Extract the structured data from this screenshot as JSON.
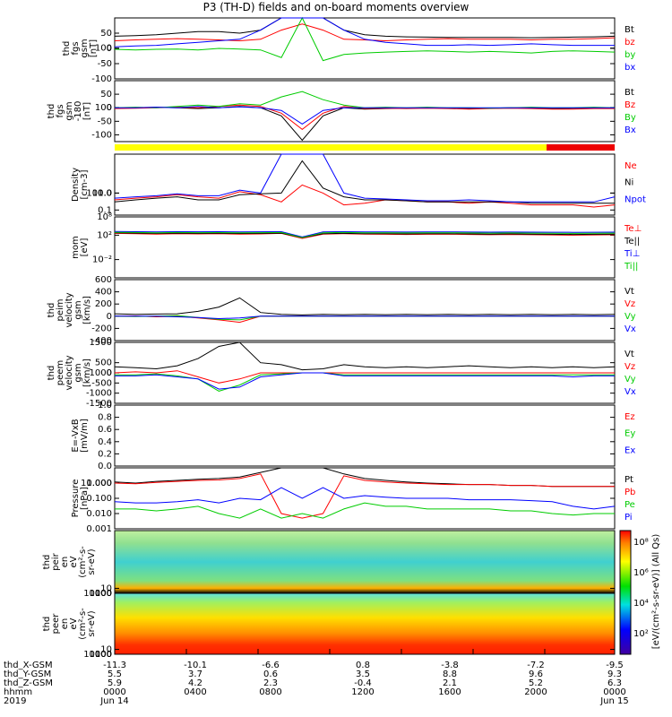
{
  "title": "P3 (TH-D) fields and on-board moments overview",
  "colors": {
    "black": "#000000",
    "red": "#ff0000",
    "green": "#00cc00",
    "blue": "#0000ff",
    "yellow": "#ffff00",
    "barRed": "#ee0000"
  },
  "chart_data": [
    {
      "type": "line",
      "id": "fgs",
      "ylabel": [
        "thd",
        "fgs",
        "gsm",
        "[nT]"
      ],
      "yticks": [
        "100",
        "50",
        "0",
        "-50",
        "-100"
      ],
      "ylim": [
        -100,
        100
      ],
      "scale": "linear",
      "series": [
        {
          "name": "Bt",
          "color": "#000000",
          "values": [
            40,
            42,
            45,
            50,
            55,
            55,
            50,
            60,
            100,
            100,
            100,
            60,
            45,
            40,
            38,
            37,
            36,
            36,
            36,
            36,
            35,
            36,
            37,
            38,
            40
          ]
        },
        {
          "name": "bz",
          "color": "#ff0000",
          "values": [
            25,
            28,
            30,
            32,
            30,
            28,
            25,
            30,
            60,
            80,
            60,
            30,
            28,
            25,
            28,
            30,
            32,
            30,
            30,
            30,
            28,
            30,
            30,
            32,
            35
          ]
        },
        {
          "name": "by",
          "color": "#00cc00",
          "values": [
            -3,
            -5,
            -3,
            -2,
            -5,
            0,
            -2,
            -5,
            -30,
            100,
            -40,
            -20,
            -15,
            -12,
            -10,
            -8,
            -10,
            -12,
            -10,
            -12,
            -15,
            -10,
            -8,
            -10,
            -12
          ]
        },
        {
          "name": "bx",
          "color": "#0000ff",
          "values": [
            5,
            8,
            10,
            15,
            20,
            25,
            30,
            60,
            100,
            100,
            100,
            60,
            30,
            20,
            15,
            10,
            10,
            12,
            10,
            12,
            15,
            12,
            10,
            10,
            10
          ]
        }
      ]
    },
    {
      "type": "line",
      "id": "fgs-180",
      "ylabel": [
        "thd",
        "fgs",
        "gsm",
        "-180",
        "[nT]"
      ],
      "yticks": [
        "100",
        "50",
        "0",
        "-50",
        "-100"
      ],
      "ylim": [
        -125,
        100
      ],
      "scale": "linear",
      "series": [
        {
          "name": "Bt",
          "color": "#000000",
          "values": [
            -2,
            0,
            2,
            0,
            -3,
            0,
            5,
            0,
            -30,
            -120,
            -30,
            0,
            -5,
            -3,
            -2,
            0,
            -2,
            -3,
            -2,
            0,
            -2,
            -3,
            -2,
            0,
            -2
          ]
        },
        {
          "name": "Bz",
          "color": "#ff0000",
          "values": [
            -3,
            -2,
            0,
            2,
            0,
            5,
            10,
            5,
            -20,
            -80,
            -20,
            5,
            -3,
            -2,
            -3,
            -2,
            -3,
            -5,
            -3,
            -2,
            -3,
            -5,
            -5,
            -3,
            -3
          ]
        },
        {
          "name": "By",
          "color": "#00cc00",
          "values": [
            0,
            2,
            0,
            5,
            10,
            5,
            15,
            10,
            40,
            60,
            30,
            10,
            0,
            2,
            0,
            2,
            0,
            0,
            -2,
            0,
            2,
            0,
            0,
            2,
            0
          ]
        },
        {
          "name": "Bx",
          "color": "#0000ff",
          "values": [
            0,
            0,
            2,
            0,
            5,
            0,
            3,
            0,
            -10,
            -60,
            -10,
            0,
            0,
            0,
            0,
            0,
            0,
            0,
            0,
            0,
            0,
            0,
            0,
            0,
            0
          ]
        }
      ]
    },
    {
      "type": "line",
      "id": "density",
      "ylabel": [
        "Density",
        "[cm-3]"
      ],
      "yticks": [
        "100.0",
        "10.0",
        "1.0",
        "0.1"
      ],
      "ylim": [
        0.05,
        200
      ],
      "scale": "log",
      "series": [
        {
          "name": "Ne",
          "color": "#ff0000",
          "values": [
            0.4,
            0.5,
            0.6,
            0.8,
            0.6,
            0.5,
            1.2,
            0.8,
            0.3,
            3,
            1,
            0.2,
            0.25,
            0.4,
            0.35,
            0.3,
            0.3,
            0.25,
            0.3,
            0.25,
            0.2,
            0.2,
            0.2,
            0.15,
            0.2
          ]
        },
        {
          "name": "Ni",
          "color": "#000000",
          "values": [
            0.3,
            0.4,
            0.5,
            0.6,
            0.4,
            0.4,
            0.8,
            0.9,
            1.0,
            80,
            2,
            0.6,
            0.4,
            0.4,
            0.35,
            0.3,
            0.3,
            0.3,
            0.3,
            0.3,
            0.25,
            0.25,
            0.25,
            0.25,
            0.25
          ]
        },
        {
          "name": "Npot",
          "color": "#0000ff",
          "values": [
            0.5,
            0.6,
            0.7,
            0.9,
            0.7,
            0.7,
            1.5,
            1.0,
            200,
            200,
            200,
            1,
            0.5,
            0.45,
            0.4,
            0.35,
            0.35,
            0.4,
            0.35,
            0.3,
            0.3,
            0.3,
            0.3,
            0.3,
            0.6
          ]
        }
      ]
    },
    {
      "type": "line",
      "id": "mom-temp",
      "ylabel": [
        "mom",
        "[eV]"
      ],
      "yticks": [
        "10⁸",
        "10²",
        "10⁻²"
      ],
      "ylim": [
        1e-05,
        100000
      ],
      "scale": "log",
      "series": [
        {
          "name": "Te⊥",
          "color": "#ff0000",
          "values": [
            200,
            180,
            150,
            180,
            160,
            170,
            150,
            160,
            200,
            30,
            150,
            180,
            150,
            140,
            130,
            140,
            150,
            130,
            120,
            130,
            120,
            110,
            100,
            110,
            120
          ]
        },
        {
          "name": "Te||",
          "color": "#000000",
          "values": [
            250,
            220,
            200,
            220,
            200,
            210,
            190,
            200,
            220,
            40,
            180,
            200,
            180,
            170,
            160,
            170,
            180,
            160,
            150,
            160,
            150,
            140,
            130,
            140,
            150
          ]
        },
        {
          "name": "Ti⊥",
          "color": "#0000ff",
          "values": [
            400,
            380,
            350,
            380,
            360,
            370,
            350,
            360,
            380,
            50,
            350,
            380,
            350,
            340,
            330,
            340,
            350,
            330,
            320,
            330,
            320,
            310,
            300,
            310,
            320
          ]
        },
        {
          "name": "Ti||",
          "color": "#00cc00",
          "values": [
            300,
            280,
            250,
            280,
            260,
            270,
            250,
            260,
            280,
            40,
            250,
            280,
            250,
            240,
            230,
            240,
            250,
            230,
            220,
            230,
            220,
            210,
            200,
            210,
            220
          ]
        }
      ]
    },
    {
      "type": "line",
      "id": "peim",
      "ylabel": [
        "thd",
        "peim",
        "velocity",
        "gsm",
        "[km/s]"
      ],
      "yticks": [
        "600",
        "400",
        "200",
        "0",
        "-200",
        "-400"
      ],
      "ylim": [
        -400,
        600
      ],
      "scale": "linear",
      "series": [
        {
          "name": "Vt",
          "color": "#000000",
          "values": [
            40,
            30,
            35,
            40,
            80,
            150,
            300,
            60,
            30,
            20,
            30,
            25,
            30,
            25,
            30,
            25,
            30,
            25,
            30,
            25,
            30,
            25,
            30,
            25,
            30
          ]
        },
        {
          "name": "Vz",
          "color": "#ff0000",
          "values": [
            0,
            5,
            -10,
            0,
            -30,
            -60,
            -100,
            0,
            0,
            5,
            0,
            0,
            0,
            0,
            0,
            0,
            0,
            0,
            0,
            0,
            0,
            0,
            0,
            0,
            0
          ]
        },
        {
          "name": "Vy",
          "color": "#00cc00",
          "values": [
            0,
            -5,
            0,
            10,
            -20,
            -50,
            -60,
            0,
            0,
            0,
            0,
            0,
            0,
            0,
            0,
            0,
            0,
            0,
            0,
            0,
            0,
            0,
            0,
            0,
            0
          ]
        },
        {
          "name": "Vx",
          "color": "#0000ff",
          "values": [
            0,
            0,
            0,
            -10,
            -20,
            -40,
            -30,
            0,
            0,
            0,
            0,
            0,
            0,
            0,
            0,
            0,
            0,
            0,
            0,
            0,
            0,
            0,
            0,
            0,
            0
          ]
        }
      ]
    },
    {
      "type": "line",
      "id": "peem",
      "ylabel": [
        "thd",
        "peem",
        "velocity",
        "gsm",
        "[km/s]"
      ],
      "yticks": [
        "1500",
        "1000",
        "500",
        "0",
        "-500",
        "-1000",
        "-1500"
      ],
      "ylim": [
        -1500,
        1500
      ],
      "scale": "linear",
      "series": [
        {
          "name": "Vt",
          "color": "#000000",
          "values": [
            300,
            250,
            200,
            350,
            700,
            1300,
            1500,
            500,
            400,
            150,
            200,
            400,
            300,
            250,
            300,
            250,
            300,
            350,
            300,
            250,
            300,
            250,
            300,
            250,
            300
          ]
        },
        {
          "name": "Vz",
          "color": "#ff0000",
          "values": [
            0,
            50,
            0,
            100,
            -200,
            -500,
            -300,
            0,
            0,
            0,
            0,
            0,
            0,
            0,
            0,
            0,
            0,
            0,
            0,
            0,
            0,
            0,
            0,
            0,
            0
          ]
        },
        {
          "name": "Vy",
          "color": "#00cc00",
          "values": [
            -100,
            -100,
            -50,
            -150,
            -300,
            -900,
            -600,
            -100,
            -50,
            0,
            0,
            -100,
            -100,
            -100,
            -100,
            -100,
            -100,
            -100,
            -100,
            -100,
            -100,
            -100,
            -100,
            -100,
            -100
          ]
        },
        {
          "name": "Vx",
          "color": "#0000ff",
          "values": [
            -150,
            -150,
            -100,
            -200,
            -300,
            -800,
            -700,
            -200,
            -100,
            0,
            0,
            -150,
            -150,
            -150,
            -150,
            -150,
            -150,
            -150,
            -150,
            -150,
            -150,
            -150,
            -200,
            -150,
            -150
          ]
        }
      ]
    },
    {
      "type": "line",
      "id": "efield",
      "ylabel": [
        "E=-VxB",
        "[mV/m]"
      ],
      "yticks": [
        "1.0",
        "0.8",
        "0.6",
        "0.4",
        "0.2",
        "0.0"
      ],
      "ylim": [
        0,
        1
      ],
      "scale": "linear",
      "series": [
        {
          "name": "Ez",
          "color": "#ff0000",
          "values": []
        },
        {
          "name": "Ey",
          "color": "#00cc00",
          "values": []
        },
        {
          "name": "Ex",
          "color": "#0000ff",
          "values": []
        }
      ]
    },
    {
      "type": "line",
      "id": "pressure",
      "ylabel": [
        "Pressure",
        "[nPa]"
      ],
      "yticks": [
        "10.000",
        "1.000",
        "0.100",
        "0.010",
        "0.001"
      ],
      "ylim": [
        0.001,
        10
      ],
      "scale": "log",
      "series": [
        {
          "name": "Pt",
          "color": "#000000",
          "values": [
            1.2,
            1.0,
            1.3,
            1.5,
            1.8,
            2.0,
            2.5,
            5,
            10,
            10,
            10,
            4,
            2,
            1.5,
            1.2,
            1.0,
            0.9,
            0.8,
            0.8,
            0.7,
            0.7,
            0.6,
            0.6,
            0.6,
            0.6
          ]
        },
        {
          "name": "Pb",
          "color": "#ff0000",
          "values": [
            1.0,
            0.9,
            1.1,
            1.3,
            1.5,
            1.6,
            2.0,
            4,
            0.01,
            0.005,
            0.01,
            3,
            1.5,
            1.2,
            1.0,
            0.9,
            0.8,
            0.8,
            0.8,
            0.7,
            0.7,
            0.6,
            0.6,
            0.6,
            0.6
          ]
        },
        {
          "name": "Pe",
          "color": "#00cc00",
          "values": [
            0.02,
            0.02,
            0.015,
            0.02,
            0.03,
            0.01,
            0.005,
            0.02,
            0.005,
            0.01,
            0.005,
            0.02,
            0.05,
            0.03,
            0.03,
            0.02,
            0.02,
            0.02,
            0.02,
            0.015,
            0.015,
            0.01,
            0.008,
            0.01,
            0.01
          ]
        },
        {
          "name": "Pi",
          "color": "#0000ff",
          "values": [
            0.06,
            0.05,
            0.05,
            0.06,
            0.08,
            0.05,
            0.1,
            0.08,
            0.5,
            0.1,
            0.5,
            0.1,
            0.15,
            0.12,
            0.1,
            0.1,
            0.1,
            0.08,
            0.08,
            0.08,
            0.07,
            0.06,
            0.03,
            0.02,
            0.03
          ]
        }
      ]
    },
    {
      "type": "heatmap",
      "id": "peir",
      "ylabel": [
        "thd",
        "peir",
        "en",
        "eV",
        "(cm²-s-",
        "sr-eV)"
      ],
      "yticks": [
        "10000",
        "1000",
        "100",
        "10"
      ],
      "ylim": [
        5,
        30000
      ],
      "scale": "log"
    },
    {
      "type": "heatmap",
      "id": "peer",
      "ylabel": [
        "thd",
        "peer",
        "en",
        "eV",
        "(cm²-s-",
        "sr-eV)"
      ],
      "yticks": [
        "10000",
        "1000",
        "100",
        "10"
      ],
      "ylim": [
        5,
        30000
      ],
      "scale": "log"
    }
  ],
  "colorbar": {
    "label": "[eV/(cm²-s-sr-eV)] (All Qs)",
    "ticks": [
      "10⁸",
      "10⁶",
      "10⁴",
      "10²"
    ]
  },
  "footer": {
    "rows": [
      {
        "label": "thd_X-GSM",
        "values": [
          "-11.3",
          "-10.1",
          "-6.6",
          "",
          "0.8",
          "-3.8",
          "-7.2",
          "-9.5"
        ]
      },
      {
        "label": "thd_Y-GSM",
        "values": [
          "5.5",
          "3.7",
          "0.6",
          "",
          "3.5",
          "8.8",
          "9.6",
          "9.3"
        ]
      },
      {
        "label": "thd_Z-GSM",
        "values": [
          "5.9",
          "4.2",
          "2.3",
          "",
          "-0.4",
          "2.1",
          "5.2",
          "6.3"
        ]
      },
      {
        "label": "hhmm",
        "values": [
          "0000",
          "0400",
          "0800",
          "",
          "1200",
          "1600",
          "2000",
          "0000"
        ]
      },
      {
        "label": "2019",
        "values": [
          "Jun 14",
          "",
          "",
          "",
          "",
          "",
          "",
          "Jun 15"
        ]
      }
    ]
  }
}
